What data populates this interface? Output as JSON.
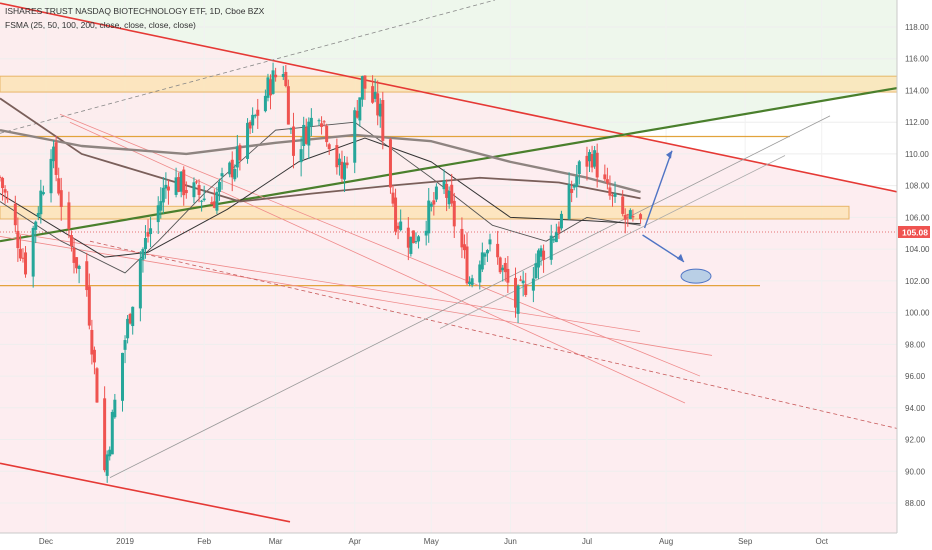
{
  "header": {
    "title": "ISHARES TRUST NASDAQ BIOTECHNOLOGY ETF, 1D, Cboe BZX",
    "indicator": "FSMA (25, 50, 100, 200, close, close, close, close)"
  },
  "price_label": "105.08",
  "colors": {
    "up": "#26a69a",
    "down": "#ef5350",
    "resistance_band": "#fde3b0",
    "band_border": "#e2a33c",
    "channel_line": "#e53935",
    "trend_green": "#4a7f2c",
    "ma_slow": "#7a5f5a",
    "ma_fast": "#3a3a3a",
    "arrow": "#4f74c4",
    "target_ellipse": "#b9cfe6",
    "zone_upper": "#eef7ec",
    "zone_lower": "#fdebee"
  },
  "chart_data": {
    "type": "candlestick",
    "title": "ISHARES TRUST NASDAQ BIOTECHNOLOGY ETF, 1D, Cboe BZX",
    "last_price": 105.08,
    "ylim": [
      86.9,
      119.6
    ],
    "y_ticks": [
      88,
      90,
      92,
      94,
      96,
      98,
      100,
      102,
      104,
      106,
      108,
      110,
      112,
      114,
      116,
      118
    ],
    "x_ticks": [
      "Dec",
      "2019",
      "Feb",
      "Mar",
      "Apr",
      "May",
      "Jun",
      "Jul",
      "Aug",
      "Sep",
      "Oct"
    ],
    "price_path": [
      {
        "date": "2018-11-13",
        "close": 108.5
      },
      {
        "date": "2018-11-23",
        "close": 103.0
      },
      {
        "date": "2018-12-03",
        "close": 110.5
      },
      {
        "date": "2018-12-10",
        "close": 104.5
      },
      {
        "date": "2018-12-17",
        "close": 101.5
      },
      {
        "date": "2018-12-24",
        "close": 90.0
      },
      {
        "date": "2018-12-31",
        "close": 97.5
      },
      {
        "date": "2019-01-07",
        "close": 103.5
      },
      {
        "date": "2019-01-18",
        "close": 108.5
      },
      {
        "date": "2019-02-04",
        "close": 107.0
      },
      {
        "date": "2019-02-15",
        "close": 110.0
      },
      {
        "date": "2019-02-27",
        "close": 114.5
      },
      {
        "date": "2019-03-04",
        "close": 115.5
      },
      {
        "date": "2019-03-08",
        "close": 110.0
      },
      {
        "date": "2019-03-18",
        "close": 113.0
      },
      {
        "date": "2019-03-27",
        "close": 108.5
      },
      {
        "date": "2019-04-04",
        "close": 114.5
      },
      {
        "date": "2019-04-11",
        "close": 112.5
      },
      {
        "date": "2019-04-17",
        "close": 106.0
      },
      {
        "date": "2019-04-23",
        "close": 104.5
      },
      {
        "date": "2019-05-01",
        "close": 106.5
      },
      {
        "date": "2019-05-06",
        "close": 108.0
      },
      {
        "date": "2019-05-13",
        "close": 104.0
      },
      {
        "date": "2019-05-16",
        "close": 102.0
      },
      {
        "date": "2019-05-22",
        "close": 104.5
      },
      {
        "date": "2019-05-28",
        "close": 103.0
      },
      {
        "date": "2019-06-03",
        "close": 100.5
      },
      {
        "date": "2019-06-12",
        "close": 103.5
      },
      {
        "date": "2019-06-20",
        "close": 105.5
      },
      {
        "date": "2019-06-28",
        "close": 109.0
      },
      {
        "date": "2019-07-03",
        "close": 110.0
      },
      {
        "date": "2019-07-09",
        "close": 107.5
      },
      {
        "date": "2019-07-15",
        "close": 106.0
      },
      {
        "date": "2019-07-22",
        "close": 105.08
      }
    ],
    "moving_averages": [
      {
        "period": 25,
        "points": [
          [
            "2018-11-13",
            107.0
          ],
          [
            "2018-12-07",
            104.5
          ],
          [
            "2019-01-01",
            102.5
          ],
          [
            "2019-01-14",
            104.5
          ],
          [
            "2019-02-01",
            107.5
          ],
          [
            "2019-03-01",
            111.5
          ],
          [
            "2019-04-01",
            112.0
          ],
          [
            "2019-05-01",
            108.5
          ],
          [
            "2019-05-25",
            105.5
          ],
          [
            "2019-06-15",
            104.5
          ],
          [
            "2019-07-01",
            106.0
          ],
          [
            "2019-07-22",
            105.5
          ]
        ]
      },
      {
        "period": 50,
        "points": [
          [
            "2018-11-13",
            107.5
          ],
          [
            "2018-12-24",
            103.5
          ],
          [
            "2019-01-10",
            103.8
          ],
          [
            "2019-02-10",
            106.5
          ],
          [
            "2019-03-10",
            109.5
          ],
          [
            "2019-04-05",
            111.0
          ],
          [
            "2019-05-01",
            109.5
          ],
          [
            "2019-06-01",
            106.0
          ],
          [
            "2019-07-01",
            105.8
          ],
          [
            "2019-07-22",
            105.6
          ]
        ]
      },
      {
        "period": 100,
        "points": [
          [
            "2018-11-13",
            113.5
          ],
          [
            "2018-12-15",
            110.0
          ],
          [
            "2019-01-15",
            108.5
          ],
          [
            "2019-02-15",
            107.0
          ],
          [
            "2019-03-15",
            107.5
          ],
          [
            "2019-04-15",
            108.0
          ],
          [
            "2019-05-20",
            108.5
          ],
          [
            "2019-06-20",
            108.2
          ],
          [
            "2019-07-22",
            107.2
          ]
        ]
      },
      {
        "period": 200,
        "points": [
          [
            "2018-11-13",
            111.5
          ],
          [
            "2018-12-15",
            110.5
          ],
          [
            "2019-01-25",
            110.0
          ],
          [
            "2019-03-01",
            110.7
          ],
          [
            "2019-04-01",
            111.2
          ],
          [
            "2019-05-01",
            110.8
          ],
          [
            "2019-06-01",
            109.5
          ],
          [
            "2019-07-01",
            108.5
          ],
          [
            "2019-07-22",
            107.6
          ]
        ]
      }
    ],
    "resistance_zones": [
      [
        113.9,
        114.9
      ],
      [
        105.9,
        106.7
      ]
    ],
    "horizontal_levels": [
      111.1,
      101.7
    ],
    "trendlines": [
      {
        "name": "upper channel",
        "from": [
          "2018-11-13",
          119.5
        ],
        "to": [
          "2019-10-25",
          107.8
        ]
      },
      {
        "name": "lower channel",
        "from": [
          "2018-11-13",
          90.5
        ],
        "to": [
          "2019-03-04",
          86.9
        ]
      },
      {
        "name": "rising support",
        "from": [
          "2018-11-13",
          104.5
        ],
        "to": [
          "2019-10-25",
          114.0
        ]
      }
    ],
    "projection": {
      "up_target": 110.2,
      "down_target": 103.2,
      "target_zone": 102.3
    }
  }
}
